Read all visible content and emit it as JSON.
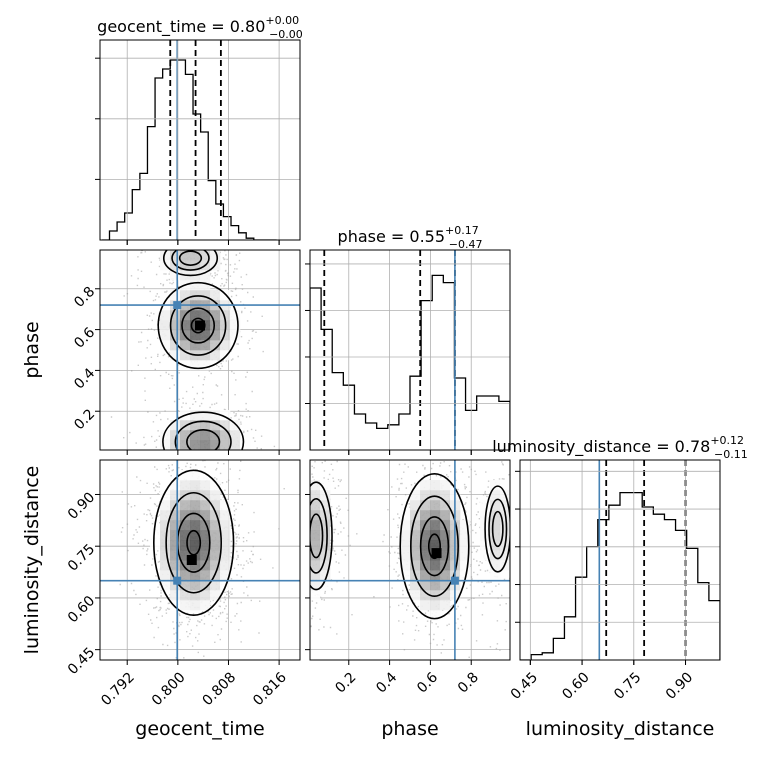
{
  "chart_data": {
    "type": "corner",
    "parameters": [
      "geocent_time",
      "phase",
      "luminosity_distance"
    ],
    "truths": {
      "geocent_time": 0.7999,
      "phase": 0.72,
      "luminosity_distance": 0.65
    },
    "colors": {
      "hist": "#000000",
      "truth": "#4682b4",
      "grid": "#b0b0b0",
      "scatter": "#9e9e9e"
    },
    "panels": [
      {
        "row": 0,
        "col": 0,
        "kind": "hist1d",
        "param": "geocent_time",
        "title": {
          "main": "geocent_time = 0.80",
          "sup": "+0.00",
          "sub": "−0.00"
        },
        "xlim": [
          0.7877,
          0.8193
        ],
        "bins": [
          0.788,
          0.7892,
          0.7904,
          0.7916,
          0.7928,
          0.794,
          0.7952,
          0.7964,
          0.7976,
          0.7988,
          0.8,
          0.8012,
          0.8024,
          0.8036,
          0.8048,
          0.806,
          0.8072,
          0.8084,
          0.8096,
          0.8108,
          0.812,
          0.8132,
          0.8144,
          0.8156
        ],
        "counts": [
          0.0,
          0.05,
          0.1,
          0.15,
          0.28,
          0.37,
          0.63,
          0.9,
          0.95,
          1.0,
          1.0,
          0.92,
          0.7,
          0.6,
          0.33,
          0.2,
          0.13,
          0.08,
          0.04,
          0.01,
          0.0,
          0.0,
          0.0
        ],
        "quantiles": [
          0.7988,
          0.8028,
          0.8068
        ],
        "yticks": 3
      },
      {
        "row": 1,
        "col": 1,
        "kind": "hist1d",
        "param": "phase",
        "title": {
          "main": "phase = 0.55",
          "sup": "+0.17",
          "sub": "−0.47"
        },
        "xlim": [
          0.01,
          0.99
        ],
        "bins": [
          0.01,
          0.0644,
          0.1189,
          0.1733,
          0.2278,
          0.2822,
          0.3367,
          0.3911,
          0.4456,
          0.5,
          0.5544,
          0.6089,
          0.6633,
          0.7178,
          0.7722,
          0.8267,
          0.8811,
          0.9356,
          0.99
        ],
        "counts": [
          0.9,
          0.67,
          0.43,
          0.36,
          0.2,
          0.15,
          0.12,
          0.14,
          0.2,
          0.41,
          0.83,
          0.97,
          0.93,
          0.4,
          0.22,
          0.3,
          0.3,
          0.27
        ],
        "quantiles": [
          0.08,
          0.55,
          0.72
        ],
        "yticks": 4
      },
      {
        "row": 2,
        "col": 2,
        "kind": "hist1d",
        "param": "luminosity_distance",
        "title": {
          "main": "luminosity_distance = 0.78",
          "sup": "+0.12",
          "sub": "−0.11"
        },
        "xlim": [
          0.42,
          1.0
        ],
        "bins": [
          0.42,
          0.4522,
          0.4844,
          0.5167,
          0.5489,
          0.5811,
          0.6133,
          0.6456,
          0.6778,
          0.71,
          0.7422,
          0.7744,
          0.8067,
          0.8389,
          0.8711,
          0.9033,
          0.9356,
          0.9678,
          1.0
        ],
        "counts": [
          0.0,
          0.03,
          0.04,
          0.12,
          0.24,
          0.46,
          0.63,
          0.78,
          0.86,
          0.93,
          0.93,
          0.85,
          0.81,
          0.78,
          0.72,
          0.62,
          0.43,
          0.33
        ],
        "quantiles": [
          0.67,
          0.78,
          0.9
        ],
        "yticks": 5
      },
      {
        "row": 1,
        "col": 0,
        "kind": "hist2d",
        "xparam": "geocent_time",
        "yparam": "phase",
        "xlim": [
          0.7877,
          0.8193
        ],
        "ylim": [
          0.01,
          0.99
        ],
        "modes": [
          {
            "cx": 0.8032,
            "cy": 0.62,
            "sx": 0.003,
            "sy": 0.1,
            "w": 1.0
          },
          {
            "cx": 0.804,
            "cy": 0.05,
            "sx": 0.0035,
            "sy": 0.08,
            "w": 0.75
          },
          {
            "cx": 0.802,
            "cy": 0.95,
            "sx": 0.003,
            "sy": 0.06,
            "w": 0.45
          }
        ],
        "peak": {
          "x": 0.8035,
          "y": 0.62
        }
      },
      {
        "row": 2,
        "col": 0,
        "kind": "hist2d",
        "xparam": "geocent_time",
        "yparam": "luminosity_distance",
        "xlim": [
          0.7877,
          0.8193
        ],
        "ylim": [
          0.42,
          1.0
        ],
        "modes": [
          {
            "cx": 0.8025,
            "cy": 0.76,
            "sx": 0.003,
            "sy": 0.1,
            "w": 1.0
          }
        ],
        "peak": {
          "x": 0.8022,
          "y": 0.71
        }
      },
      {
        "row": 2,
        "col": 1,
        "kind": "hist2d",
        "xparam": "phase",
        "yparam": "luminosity_distance",
        "xlim": [
          0.01,
          0.99
        ],
        "ylim": [
          0.42,
          1.0
        ],
        "modes": [
          {
            "cx": 0.62,
            "cy": 0.75,
            "sx": 0.08,
            "sy": 0.1,
            "w": 1.0
          },
          {
            "cx": 0.04,
            "cy": 0.78,
            "sx": 0.05,
            "sy": 0.1,
            "w": 0.55
          },
          {
            "cx": 0.93,
            "cy": 0.8,
            "sx": 0.05,
            "sy": 0.1,
            "w": 0.35
          }
        ],
        "peak": {
          "x": 0.63,
          "y": 0.73
        }
      }
    ],
    "ticks": {
      "geocent_time": {
        "values": [
          0.792,
          0.8,
          0.808,
          0.816
        ],
        "labels": [
          "0.792",
          "0.800",
          "0.808",
          "0.816"
        ]
      },
      "phase": {
        "values": [
          0.2,
          0.4,
          0.6,
          0.8
        ],
        "labels": [
          "0.2",
          "0.4",
          "0.6",
          "0.8"
        ]
      },
      "luminosity_distance": {
        "values": [
          0.45,
          0.6,
          0.75,
          0.9
        ],
        "labels": [
          "0.45",
          "0.60",
          "0.75",
          "0.90"
        ]
      }
    },
    "axis_labels": {
      "geocent_time": "geocent_time",
      "phase": "phase",
      "luminosity_distance": "luminosity_distance"
    },
    "grid": true
  }
}
